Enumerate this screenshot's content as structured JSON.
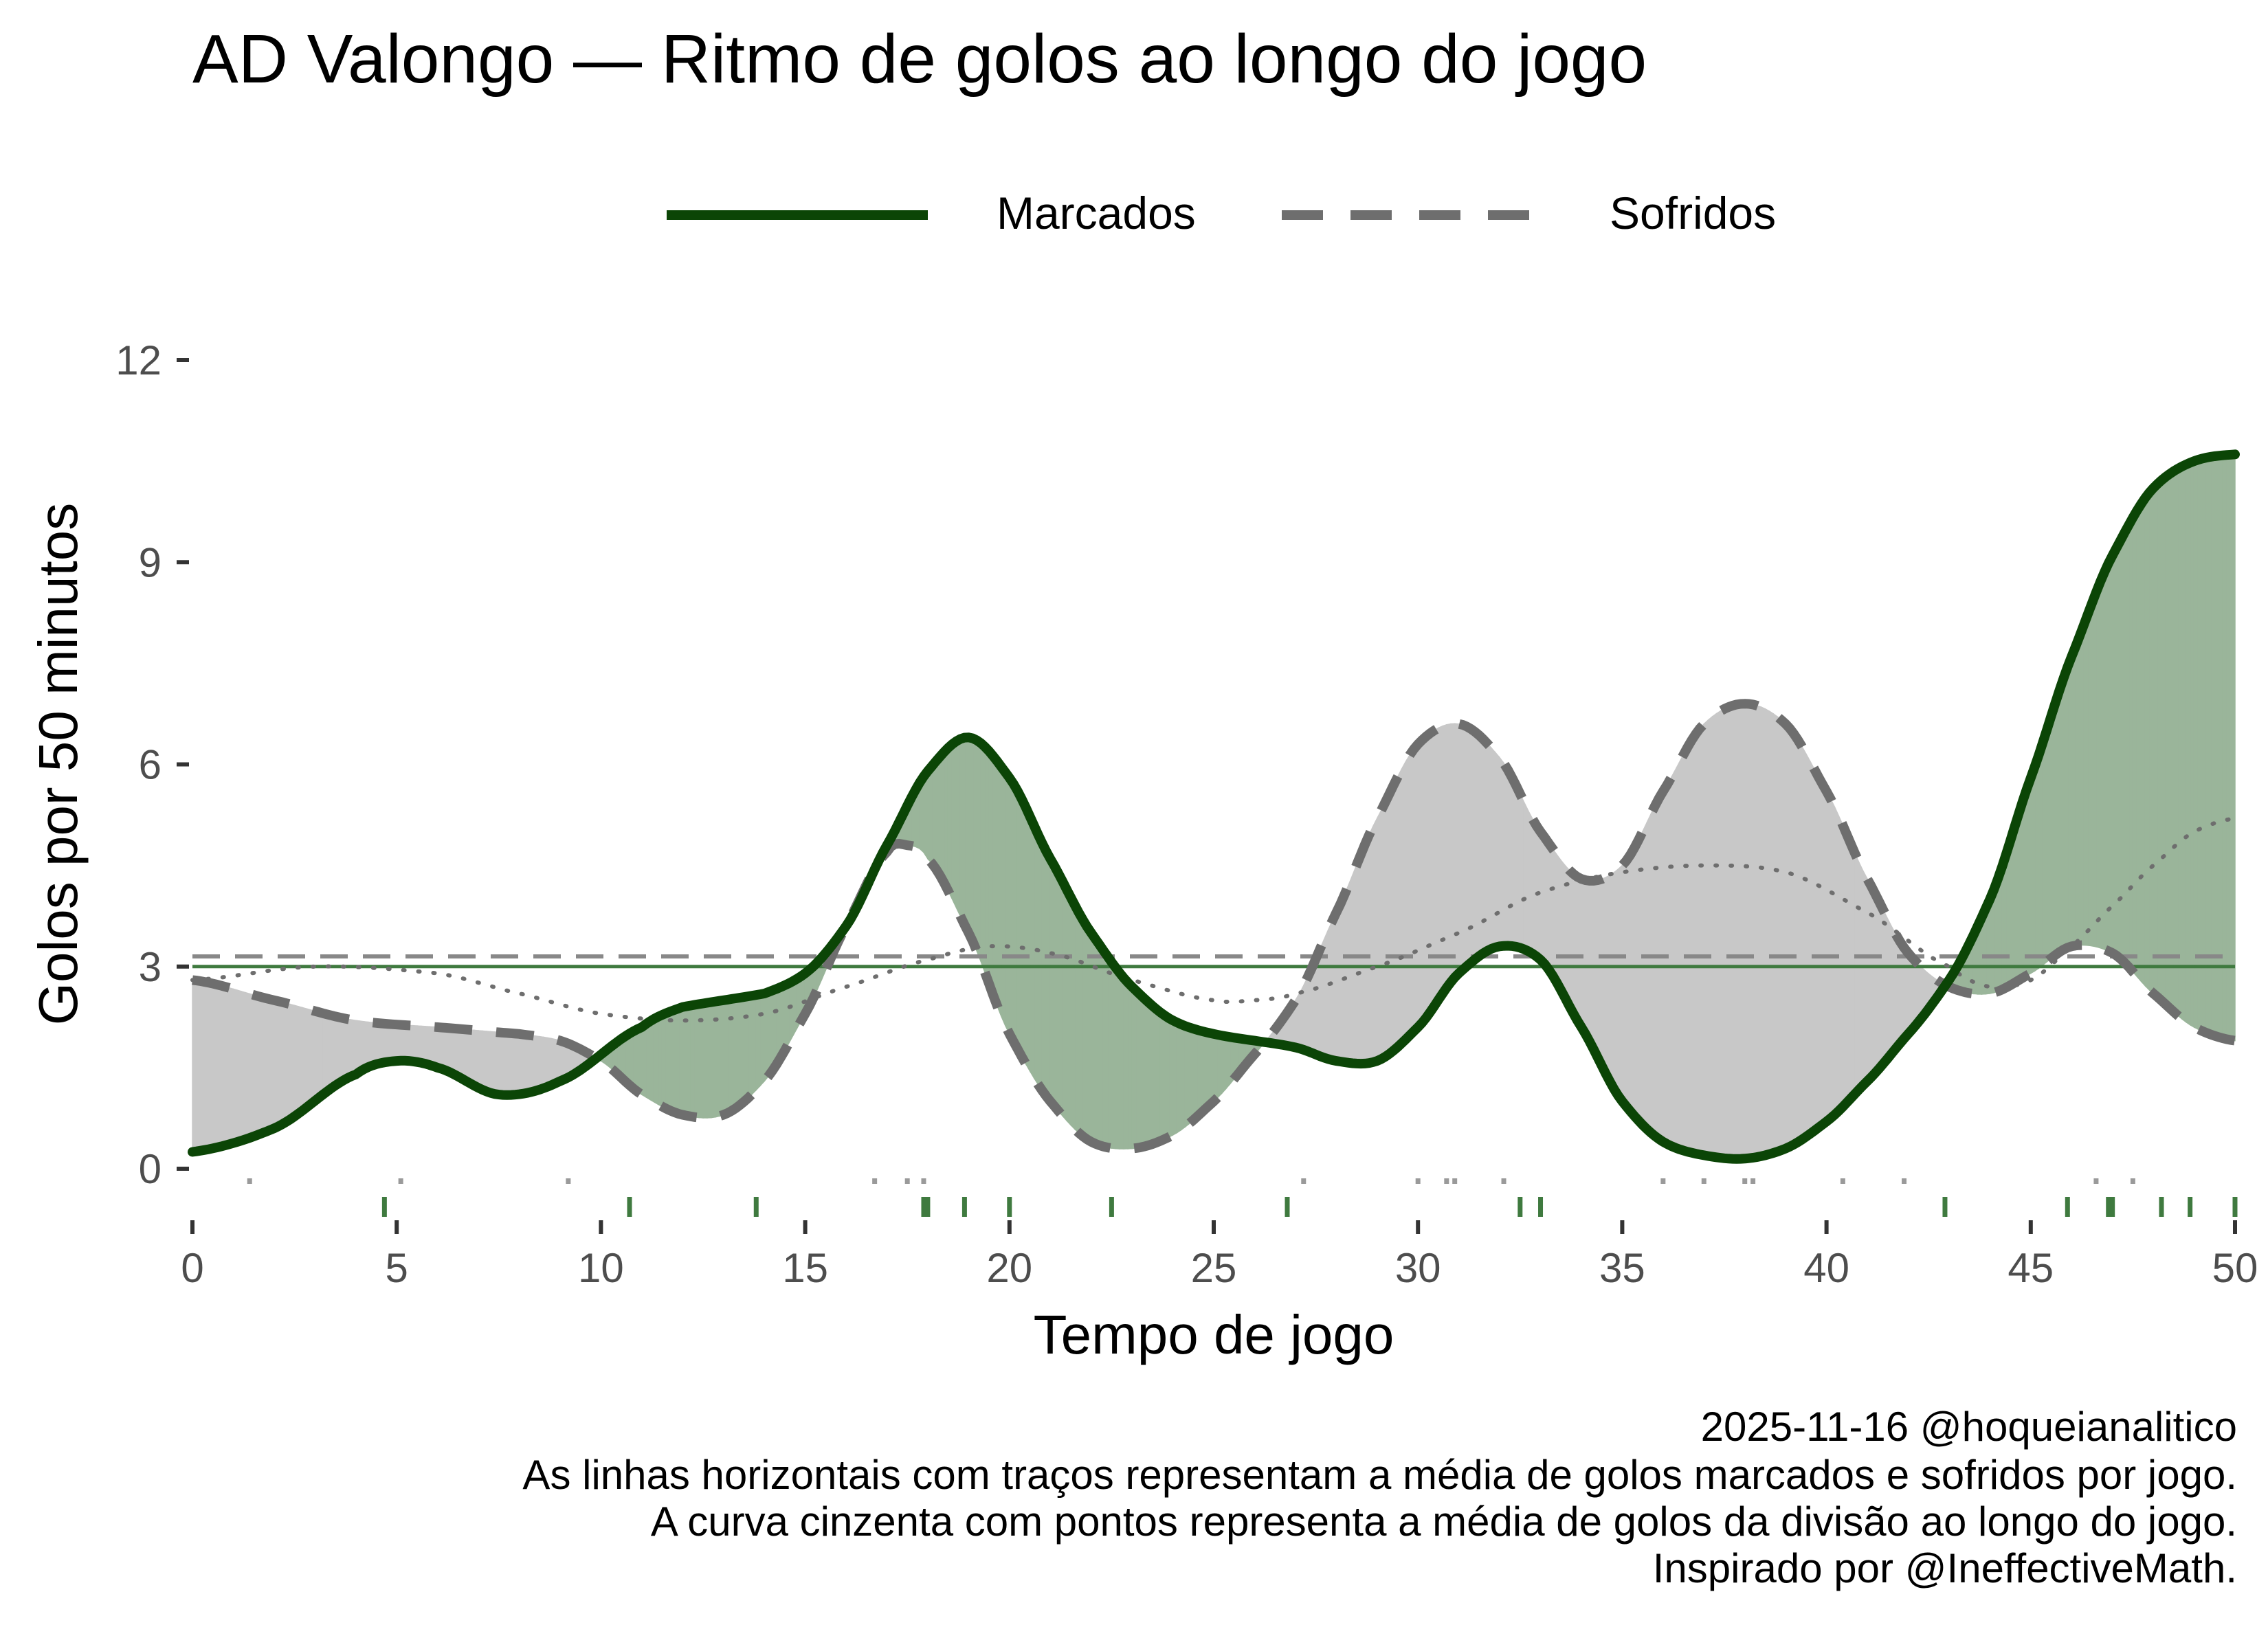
{
  "chart_data": {
    "type": "line",
    "title": "AD Valongo — Ritmo de golos ao longo do jogo",
    "xlabel": "Tempo de jogo",
    "ylabel": "Golos por 50 minutos",
    "xlim": [
      0,
      50
    ],
    "ylim": [
      0,
      12
    ],
    "xticks": [
      0,
      5,
      10,
      15,
      20,
      25,
      30,
      35,
      40,
      45,
      50
    ],
    "yticks": [
      0,
      3,
      6,
      9,
      12
    ],
    "legend_position": "top",
    "legend": [
      "Marcados",
      "Sofridos"
    ],
    "colors": {
      "marcados": "#0b4506",
      "sofridos": "#6e6e6e",
      "fill_marcados": "#9ab59a",
      "fill_sofridos": "#c8c8c8",
      "rug_marcados": "#3f7a3f",
      "rug_sofridos": "#9a9a9a",
      "division": "#6e6e6e"
    },
    "series": [
      {
        "name": "Marcados",
        "x": [
          0,
          2,
          4,
          5,
          6,
          7.5,
          9,
          11,
          12,
          14,
          15,
          16,
          17,
          18,
          19,
          20,
          21,
          22,
          23,
          24,
          25,
          26,
          27,
          28,
          29,
          30,
          31,
          32,
          33,
          34,
          35,
          36,
          37,
          38,
          39,
          40,
          41,
          42,
          43,
          44,
          45,
          46,
          47,
          48,
          49,
          50
        ],
        "y": [
          0.25,
          0.6,
          1.4,
          1.6,
          1.5,
          1.1,
          1.3,
          2.1,
          2.4,
          2.6,
          2.9,
          3.6,
          4.8,
          5.9,
          6.4,
          5.8,
          4.6,
          3.5,
          2.7,
          2.2,
          2.0,
          1.9,
          1.8,
          1.6,
          1.6,
          2.1,
          2.9,
          3.3,
          3.1,
          2.1,
          1.0,
          0.4,
          0.2,
          0.15,
          0.3,
          0.7,
          1.3,
          2.0,
          2.8,
          4.0,
          5.8,
          7.6,
          9.1,
          10.1,
          10.5,
          10.6
        ]
      },
      {
        "name": "Sofridos",
        "x": [
          0,
          2,
          4,
          6,
          8,
          9,
          10,
          11,
          12,
          13,
          14,
          15,
          16,
          17,
          17.5,
          18,
          19,
          20,
          21,
          22,
          23,
          24,
          25,
          26,
          27,
          28,
          29,
          30,
          31,
          32,
          33,
          34,
          35,
          36,
          37,
          38,
          39,
          40,
          41,
          42,
          43,
          44,
          45,
          46,
          47,
          48,
          49,
          50
        ],
        "y": [
          2.8,
          2.5,
          2.2,
          2.1,
          2.0,
          1.9,
          1.6,
          1.1,
          0.8,
          0.8,
          1.3,
          2.3,
          3.6,
          4.7,
          4.8,
          4.6,
          3.5,
          2.0,
          1.0,
          0.4,
          0.3,
          0.5,
          1.0,
          1.7,
          2.5,
          3.8,
          5.2,
          6.3,
          6.6,
          6.1,
          5.0,
          4.3,
          4.5,
          5.6,
          6.6,
          6.9,
          6.6,
          5.6,
          4.3,
          3.2,
          2.7,
          2.6,
          2.9,
          3.3,
          3.2,
          2.6,
          2.1,
          1.9
        ]
      },
      {
        "name": "Média da divisão",
        "x": [
          0,
          3,
          6,
          8,
          10,
          12,
          14,
          16,
          18,
          19.5,
          21,
          23,
          25,
          26,
          27,
          29,
          31,
          33,
          35,
          37,
          39,
          41,
          43,
          44,
          45,
          46,
          47,
          48,
          49,
          50
        ],
        "y": [
          2.8,
          3.0,
          2.9,
          2.6,
          2.3,
          2.2,
          2.3,
          2.7,
          3.1,
          3.3,
          3.2,
          2.8,
          2.5,
          2.5,
          2.6,
          3.0,
          3.5,
          4.1,
          4.4,
          4.5,
          4.4,
          3.8,
          3.0,
          2.7,
          2.8,
          3.3,
          3.9,
          4.5,
          5.0,
          5.2
        ]
      }
    ],
    "mean_marcados": 3.0,
    "mean_sofridos": 3.15,
    "rug_marcados": [
      4.7,
      10.7,
      13.8,
      17.9,
      18.0,
      18.9,
      20.0,
      22.5,
      26.8,
      32.5,
      33.0,
      42.9,
      45.9,
      46.9,
      47.0,
      48.2,
      48.9,
      50.0
    ],
    "rug_sofridos": [
      1.4,
      5.1,
      9.2,
      16.7,
      17.5,
      17.9,
      27.2,
      30.0,
      30.7,
      30.9,
      32.1,
      36.0,
      37.0,
      38.0,
      38.2,
      40.4,
      41.9,
      46.6,
      47.5
    ]
  },
  "caption": [
    "2025-11-16 @hoqueianalitico",
    "As linhas horizontais com traços representam a média de golos marcados e sofridos por jogo.",
    "A curva cinzenta com pontos representa a média de golos da divisão ao longo do jogo.",
    "Inspirado por @IneffectiveMath."
  ]
}
